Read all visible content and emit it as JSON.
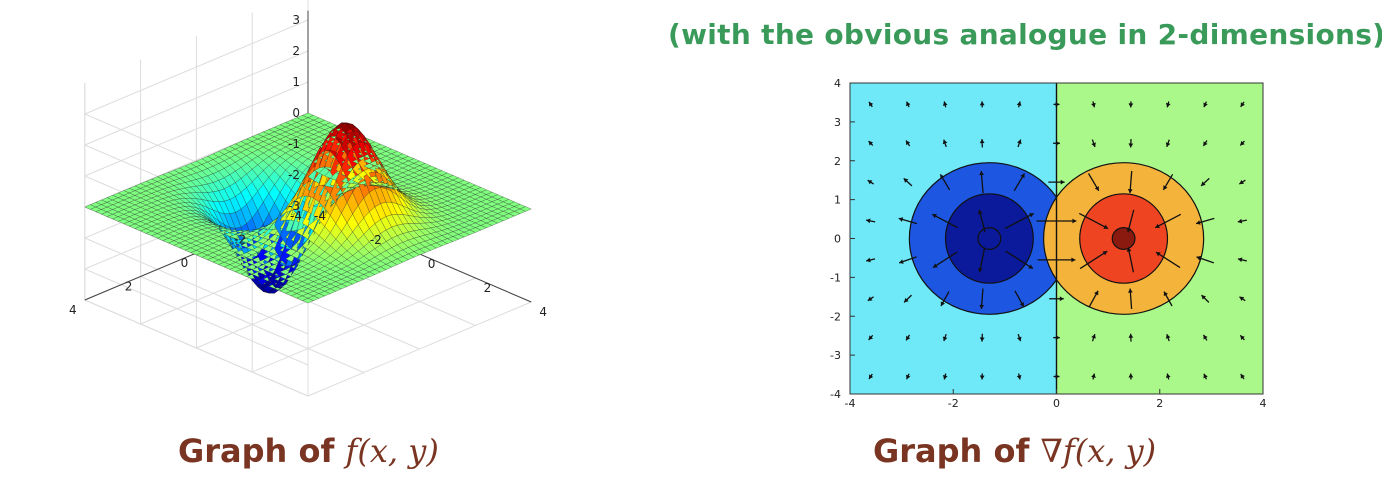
{
  "heading": "(with the obvious analogue in 2-dimensions)",
  "captions": {
    "left_prefix": "Graph of",
    "left_math": "f(x, y)",
    "right_prefix": "Graph of",
    "right_math": "∇f(x, y)"
  },
  "colors": {
    "heading": "#3a9a5a",
    "caption": "#7a3522",
    "left_region": "#6fe8f8",
    "right_region": "#aaf88a",
    "blue_outer": "#1d56e0",
    "blue_inner": "#0a1a9a",
    "orange_outer": "#f4b43c",
    "red_inner": "#ee4422",
    "dark_red_center": "#8a1a10"
  },
  "chart_data": [
    {
      "type": "surface",
      "function": "f(x, y)",
      "x_ticks": [
        "-4",
        "-2",
        "0",
        "2",
        "4"
      ],
      "y_ticks": [
        "-4",
        "-2",
        "0",
        "2",
        "4"
      ],
      "z_ticks": [
        "3",
        "2",
        "1",
        "0",
        "-1",
        "-2",
        "-3"
      ],
      "xlim": [
        -4,
        4
      ],
      "ylim": [
        -4,
        4
      ],
      "zlim": [
        -3,
        3
      ],
      "peak": {
        "x": 1.3,
        "y": 0,
        "z": 3.3
      },
      "trough": {
        "x": -1.3,
        "y": 0,
        "z": -3.3
      },
      "colormap": "jet",
      "grid": true
    },
    {
      "type": "contour",
      "function": "∇f(x, y)",
      "x_ticks": [
        "-4",
        "-2",
        "0",
        "2",
        "4"
      ],
      "y_ticks": [
        "4",
        "3",
        "2",
        "1",
        "0",
        "-1",
        "-2",
        "-3",
        "-4"
      ],
      "xlim": [
        -4,
        4
      ],
      "ylim": [
        -4,
        4
      ],
      "minimum": {
        "x": -1.3,
        "y": 0
      },
      "maximum": {
        "x": 1.3,
        "y": 0
      },
      "overlay": "gradient vector field (quiver)",
      "grid": false
    }
  ]
}
